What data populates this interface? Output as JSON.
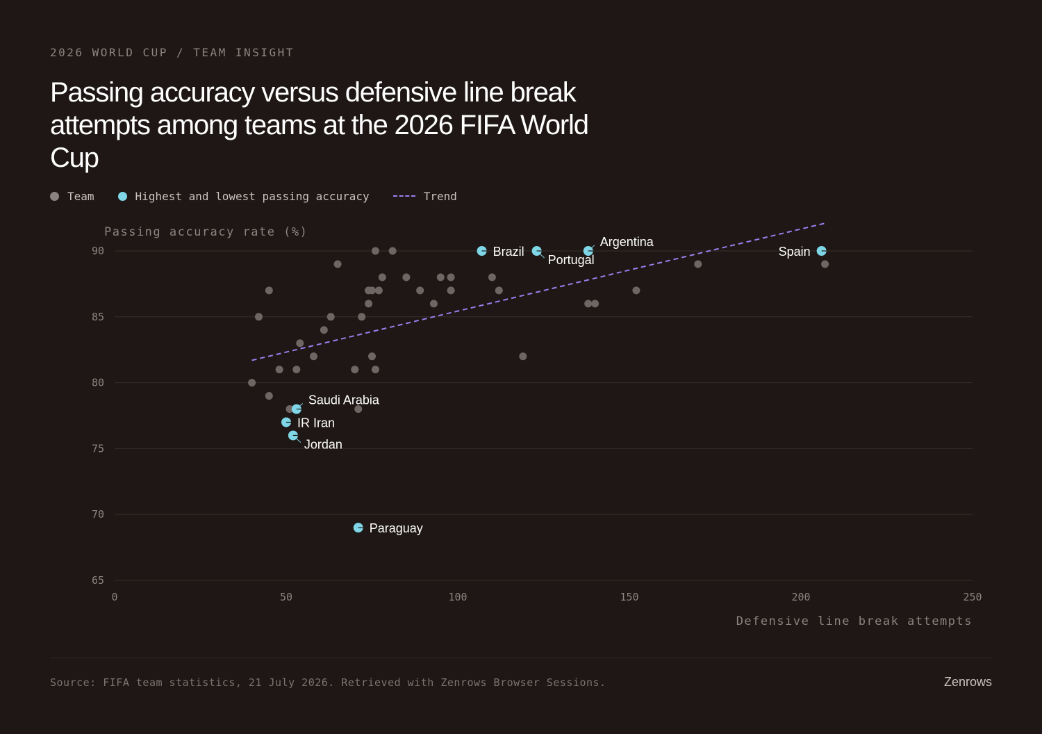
{
  "header": {
    "kicker": "2026 WORLD CUP / TEAM INSIGHT",
    "title": "Passing accuracy versus defensive line break attempts among teams at the 2026 FIFA World Cup"
  },
  "legend": {
    "team": "Team",
    "highlight": "Highest and lowest passing accuracy",
    "trend": "Trend"
  },
  "colors": {
    "background": "#1e1715",
    "team_dot": "#6f6664",
    "highlight_dot": "#7fd6e6",
    "trend_line": "#9b7ff0",
    "gridline": "#34302b",
    "axis_text": "#8c8480",
    "label_text": "#ffffff"
  },
  "footer": {
    "source": "Source: FIFA team statistics, 21 July 2026. Retrieved with Zenrows Browser Sessions.",
    "brand": "Zenrows"
  },
  "chart_data": {
    "type": "scatter",
    "xlabel": "Defensive line break attempts",
    "ylabel": "Passing accuracy rate (%)",
    "xlim": [
      0,
      250
    ],
    "ylim": [
      65,
      90
    ],
    "xticks": [
      0,
      50,
      100,
      150,
      200,
      250
    ],
    "yticks": [
      65,
      70,
      75,
      80,
      85,
      90
    ],
    "grid": true,
    "legend_position": "top-left",
    "trend": {
      "x": [
        40,
        207
      ],
      "y": [
        81.7,
        92.1
      ]
    },
    "series": [
      {
        "name": "Team",
        "points": [
          {
            "x": 40,
            "y": 80
          },
          {
            "x": 42,
            "y": 85
          },
          {
            "x": 45,
            "y": 87
          },
          {
            "x": 45,
            "y": 79
          },
          {
            "x": 48,
            "y": 81
          },
          {
            "x": 51,
            "y": 78
          },
          {
            "x": 53,
            "y": 81
          },
          {
            "x": 54,
            "y": 83
          },
          {
            "x": 58,
            "y": 82
          },
          {
            "x": 61,
            "y": 84
          },
          {
            "x": 63,
            "y": 85
          },
          {
            "x": 65,
            "y": 89
          },
          {
            "x": 70,
            "y": 81
          },
          {
            "x": 71,
            "y": 78
          },
          {
            "x": 72,
            "y": 85
          },
          {
            "x": 74,
            "y": 87
          },
          {
            "x": 74,
            "y": 86
          },
          {
            "x": 75,
            "y": 87
          },
          {
            "x": 75,
            "y": 82
          },
          {
            "x": 76,
            "y": 90
          },
          {
            "x": 76,
            "y": 81
          },
          {
            "x": 77,
            "y": 87
          },
          {
            "x": 78,
            "y": 88
          },
          {
            "x": 81,
            "y": 90
          },
          {
            "x": 85,
            "y": 88
          },
          {
            "x": 89,
            "y": 87
          },
          {
            "x": 93,
            "y": 86
          },
          {
            "x": 95,
            "y": 88
          },
          {
            "x": 98,
            "y": 88
          },
          {
            "x": 98,
            "y": 87
          },
          {
            "x": 110,
            "y": 88
          },
          {
            "x": 112,
            "y": 87
          },
          {
            "x": 119,
            "y": 82
          },
          {
            "x": 138,
            "y": 86
          },
          {
            "x": 140,
            "y": 86
          },
          {
            "x": 152,
            "y": 87
          },
          {
            "x": 170,
            "y": 89
          },
          {
            "x": 207,
            "y": 89
          }
        ]
      },
      {
        "name": "Highest and lowest passing accuracy",
        "points": [
          {
            "label": "Brazil",
            "x": 107,
            "y": 90,
            "anchor": "right"
          },
          {
            "label": "Portugal",
            "x": 123,
            "y": 90,
            "anchor": "below-right"
          },
          {
            "label": "Argentina",
            "x": 138,
            "y": 90,
            "anchor": "above-right"
          },
          {
            "label": "Spain",
            "x": 206,
            "y": 90,
            "anchor": "left"
          },
          {
            "label": "Saudi Arabia",
            "x": 53,
            "y": 78,
            "anchor": "above-right"
          },
          {
            "label": "IR Iran",
            "x": 50,
            "y": 77,
            "anchor": "right"
          },
          {
            "label": "Jordan",
            "x": 52,
            "y": 76,
            "anchor": "below-right"
          },
          {
            "label": "Paraguay",
            "x": 71,
            "y": 69,
            "anchor": "right"
          }
        ]
      }
    ]
  }
}
